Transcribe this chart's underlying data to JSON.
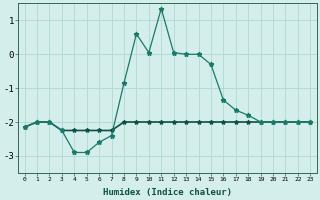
{
  "xlabel": "Humidex (Indice chaleur)",
  "line1_spiky": {
    "x": [
      0,
      1,
      2,
      3,
      4,
      5,
      6,
      7,
      8,
      9,
      10,
      11,
      12,
      13,
      14,
      15,
      16,
      17,
      18,
      19,
      20,
      21,
      22,
      23
    ],
    "y": [
      -2.15,
      -2.0,
      -2.0,
      -2.25,
      -2.9,
      -2.9,
      -2.6,
      -2.4,
      -0.85,
      0.6,
      0.05,
      1.35,
      0.05,
      0.0,
      0.0,
      -0.3,
      -1.35,
      -1.65,
      -1.8,
      -2.0,
      -2.0,
      -2.0,
      -2.0,
      -2.0
    ],
    "color": "#1a7a6a",
    "linewidth": 0.9,
    "marker": "*",
    "markersize": 3.5
  },
  "line2_flat": {
    "x": [
      0,
      1,
      2,
      3,
      4,
      5,
      6,
      7,
      8,
      9,
      10,
      11,
      12,
      13,
      14,
      15,
      16,
      17,
      18,
      19,
      20,
      21,
      22,
      23
    ],
    "y": [
      -2.15,
      -2.0,
      -2.0,
      -2.25,
      -2.25,
      -2.25,
      -2.25,
      -2.25,
      -2.0,
      -2.0,
      -2.0,
      -2.0,
      -2.0,
      -2.0,
      -2.0,
      -2.0,
      -2.0,
      -2.0,
      -2.0,
      -2.0,
      -2.0,
      -2.0,
      -2.0,
      -2.0
    ],
    "color": "#0d5045",
    "linewidth": 1.2,
    "marker": "*",
    "markersize": 3.0
  },
  "bg_color": "#d4eeec",
  "grid_color": "#b0d8d4",
  "ylim": [
    -3.5,
    1.5
  ],
  "yticks": [
    -3,
    -2,
    -1,
    0,
    1
  ],
  "xticks": [
    0,
    1,
    2,
    3,
    4,
    5,
    6,
    7,
    8,
    9,
    10,
    11,
    12,
    13,
    14,
    15,
    16,
    17,
    18,
    19,
    20,
    21,
    22,
    23
  ]
}
